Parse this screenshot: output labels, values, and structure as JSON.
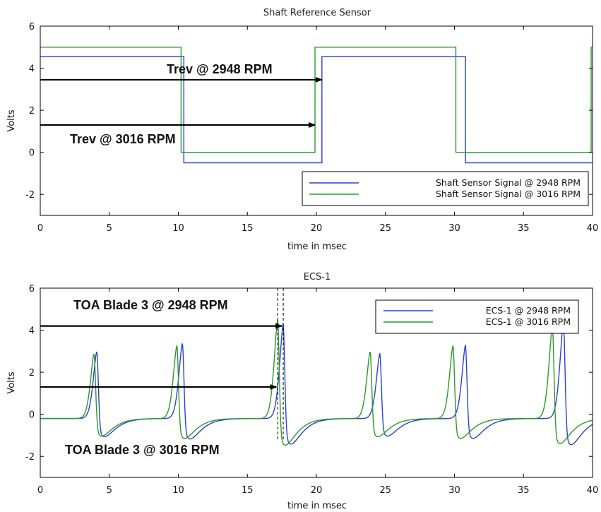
{
  "chart_data": [
    {
      "type": "line",
      "title": "Shaft Reference Sensor",
      "xlabel": "time in msec",
      "ylabel": "Volts",
      "xlim": [
        0,
        40
      ],
      "ylim": [
        -3,
        6
      ],
      "xticks": [
        "0",
        "5",
        "10",
        "15",
        "20",
        "25",
        "30",
        "35",
        "40"
      ],
      "yticks": [
        "6",
        "4",
        "2",
        "0",
        "-2"
      ],
      "grid": false,
      "legend_position": "bottom-right",
      "series": [
        {
          "name": "Shaft Sensor Signal @ 2948 RPM",
          "color": "#2a3fd6",
          "x": [
            0,
            10.4,
            10.4,
            20.4,
            20.4,
            30.8,
            30.8,
            40
          ],
          "y": [
            4.55,
            4.55,
            -0.5,
            -0.5,
            4.55,
            4.55,
            -0.5,
            -0.5
          ]
        },
        {
          "name": "Shaft Sensor Signal @ 3016 RPM",
          "color": "#2a9a2a",
          "x": [
            0,
            10.2,
            10.2,
            19.9,
            19.9,
            30.1,
            30.1,
            39.9,
            39.9,
            40
          ],
          "y": [
            5,
            5,
            0,
            0,
            5,
            5,
            0,
            0,
            5,
            5
          ]
        }
      ],
      "annotations": [
        {
          "text": "Trev @ 2948 RPM",
          "arrow_from": [
            0,
            3.45
          ],
          "arrow_to": [
            20.4,
            3.45
          ]
        },
        {
          "text": "Trev @ 3016 RPM",
          "arrow_from": [
            0,
            1.3
          ],
          "arrow_to": [
            19.9,
            1.3
          ]
        }
      ]
    },
    {
      "type": "line",
      "title": "ECS-1",
      "xlabel": "time in msec",
      "ylabel": "Volts",
      "xlim": [
        0,
        40
      ],
      "ylim": [
        -3,
        6
      ],
      "xticks": [
        "0",
        "5",
        "10",
        "15",
        "20",
        "25",
        "30",
        "35",
        "40"
      ],
      "yticks": [
        "6",
        "4",
        "2",
        "0",
        "-2"
      ],
      "grid": false,
      "legend_position": "top-right",
      "series": [
        {
          "name": "ECS-1 @ 2948 RPM",
          "color": "#2a3fd6",
          "pulse_peaks": [
            {
              "x": 4.1,
              "y": 3.0
            },
            {
              "x": 10.3,
              "y": 3.4
            },
            {
              "x": 17.6,
              "y": 4.3
            },
            {
              "x": 24.6,
              "y": 2.9
            },
            {
              "x": 30.8,
              "y": 3.3
            },
            {
              "x": 37.9,
              "y": 4.4
            }
          ]
        },
        {
          "name": "ECS-1 @ 3016 RPM",
          "color": "#2a9a2a",
          "pulse_peaks": [
            {
              "x": 3.9,
              "y": 2.9
            },
            {
              "x": 9.9,
              "y": 3.3
            },
            {
              "x": 17.2,
              "y": 4.5
            },
            {
              "x": 23.9,
              "y": 3.0
            },
            {
              "x": 29.9,
              "y": 3.3
            },
            {
              "x": 37.1,
              "y": 4.2
            }
          ]
        }
      ],
      "annotations": [
        {
          "text": "TOA Blade 3 @ 2948 RPM",
          "arrow_from": [
            0,
            4.2
          ],
          "arrow_to": [
            17.5,
            4.2
          ]
        },
        {
          "text": "TOA Blade 3 @ 3016 RPM",
          "arrow_from": [
            0,
            1.3
          ],
          "arrow_to": [
            17.1,
            1.3
          ]
        }
      ],
      "reference_lines_x": [
        17.2,
        17.6
      ]
    }
  ]
}
